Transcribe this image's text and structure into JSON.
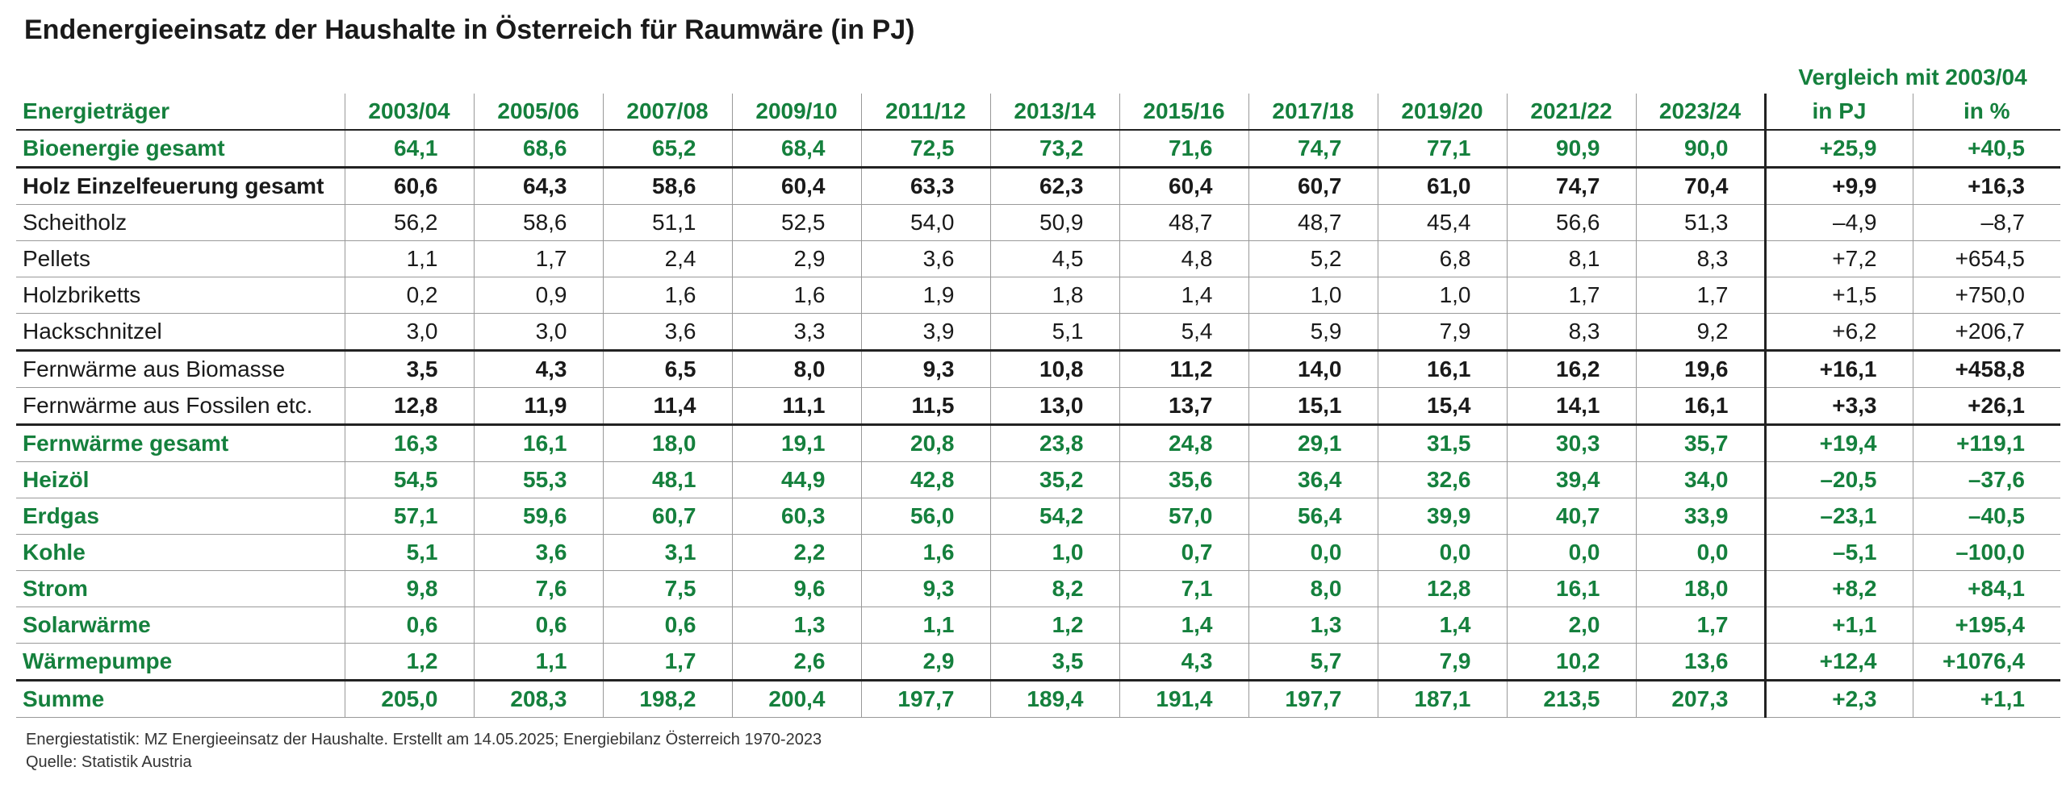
{
  "title": "Endenergieeinsatz der Haushalte in Österreich für Raumwäre (in PJ)",
  "table": {
    "group_header": "Vergleich mit 2003/04",
    "columns": [
      "Energieträger",
      "2003/04",
      "2005/06",
      "2007/08",
      "2009/10",
      "2011/12",
      "2013/14",
      "2015/16",
      "2017/18",
      "2019/20",
      "2021/22",
      "2023/24",
      "in PJ",
      "in %"
    ],
    "rows": [
      [
        "Bioenergie gesamt",
        "64,1",
        "68,6",
        "65,2",
        "68,4",
        "72,5",
        "73,2",
        "71,6",
        "74,7",
        "77,1",
        "90,9",
        "90,0",
        "+25,9",
        "+40,5"
      ],
      [
        "Holz Einzelfeuerung gesamt",
        "60,6",
        "64,3",
        "58,6",
        "60,4",
        "63,3",
        "62,3",
        "60,4",
        "60,7",
        "61,0",
        "74,7",
        "70,4",
        "+9,9",
        "+16,3"
      ],
      [
        "Scheitholz",
        "56,2",
        "58,6",
        "51,1",
        "52,5",
        "54,0",
        "50,9",
        "48,7",
        "48,7",
        "45,4",
        "56,6",
        "51,3",
        "–4,9",
        "–8,7"
      ],
      [
        "Pellets",
        "1,1",
        "1,7",
        "2,4",
        "2,9",
        "3,6",
        "4,5",
        "4,8",
        "5,2",
        "6,8",
        "8,1",
        "8,3",
        "+7,2",
        "+654,5"
      ],
      [
        "Holzbriketts",
        "0,2",
        "0,9",
        "1,6",
        "1,6",
        "1,9",
        "1,8",
        "1,4",
        "1,0",
        "1,0",
        "1,7",
        "1,7",
        "+1,5",
        "+750,0"
      ],
      [
        "Hackschnitzel",
        "3,0",
        "3,0",
        "3,6",
        "3,3",
        "3,9",
        "5,1",
        "5,4",
        "5,9",
        "7,9",
        "8,3",
        "9,2",
        "+6,2",
        "+206,7"
      ],
      [
        "Fernwärme aus Biomasse",
        "3,5",
        "4,3",
        "6,5",
        "8,0",
        "9,3",
        "10,8",
        "11,2",
        "14,0",
        "16,1",
        "16,2",
        "19,6",
        "+16,1",
        "+458,8"
      ],
      [
        "Fernwärme aus Fossilen etc.",
        "12,8",
        "11,9",
        "11,4",
        "11,1",
        "11,5",
        "13,0",
        "13,7",
        "15,1",
        "15,4",
        "14,1",
        "16,1",
        "+3,3",
        "+26,1"
      ],
      [
        "Fernwärme gesamt",
        "16,3",
        "16,1",
        "18,0",
        "19,1",
        "20,8",
        "23,8",
        "24,8",
        "29,1",
        "31,5",
        "30,3",
        "35,7",
        "+19,4",
        "+119,1"
      ],
      [
        "Heizöl",
        "54,5",
        "55,3",
        "48,1",
        "44,9",
        "42,8",
        "35,2",
        "35,6",
        "36,4",
        "32,6",
        "39,4",
        "34,0",
        "–20,5",
        "–37,6"
      ],
      [
        "Erdgas",
        "57,1",
        "59,6",
        "60,7",
        "60,3",
        "56,0",
        "54,2",
        "57,0",
        "56,4",
        "39,9",
        "40,7",
        "33,9",
        "–23,1",
        "–40,5"
      ],
      [
        "Kohle",
        "5,1",
        "3,6",
        "3,1",
        "2,2",
        "1,6",
        "1,0",
        "0,7",
        "0,0",
        "0,0",
        "0,0",
        "0,0",
        "–5,1",
        "–100,0"
      ],
      [
        "Strom",
        "9,8",
        "7,6",
        "7,5",
        "9,6",
        "9,3",
        "8,2",
        "7,1",
        "8,0",
        "12,8",
        "16,1",
        "18,0",
        "+8,2",
        "+84,1"
      ],
      [
        "Solarwärme",
        "0,6",
        "0,6",
        "0,6",
        "1,3",
        "1,1",
        "1,2",
        "1,4",
        "1,3",
        "1,4",
        "2,0",
        "1,7",
        "+1,1",
        "+195,4"
      ],
      [
        "Wärmepumpe",
        "1,2",
        "1,1",
        "1,7",
        "2,6",
        "2,9",
        "3,5",
        "4,3",
        "5,7",
        "7,9",
        "10,2",
        "13,6",
        "+12,4",
        "+1076,4"
      ],
      [
        "Summe",
        "205,0",
        "208,3",
        "198,2",
        "200,4",
        "197,7",
        "189,4",
        "191,4",
        "197,7",
        "187,1",
        "213,5",
        "207,3",
        "+2,3",
        "+1,1"
      ]
    ]
  },
  "footnotes": [
    "Energiestatistik: MZ Energieeinsatz der Haushalte. Erstellt am 14.05.2025; Energiebilanz Österreich 1970-2023",
    "Quelle: Statistik Austria"
  ]
}
